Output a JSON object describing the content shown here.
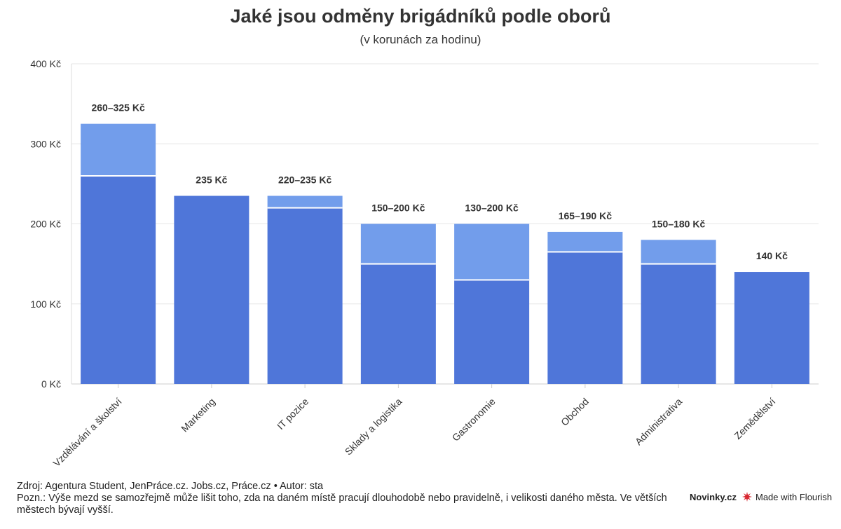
{
  "header": {
    "title": "Jaké jsou odměny brigádníků podle oborů",
    "subtitle": "(v korunách za hodinu)"
  },
  "chart_data": {
    "type": "bar",
    "stacked_range": true,
    "categories": [
      "Vzdělávání a školství",
      "Marketing",
      "IT pozice",
      "Sklady a logistika",
      "Gastronomie",
      "Obchod",
      "Administrativa",
      "Zemědělství"
    ],
    "min_values": [
      260,
      235,
      220,
      150,
      130,
      165,
      150,
      140
    ],
    "max_values": [
      325,
      235,
      235,
      200,
      200,
      190,
      180,
      140
    ],
    "data_labels": [
      "260–325 Kč",
      "235 Kč",
      "220–235 Kč",
      "150–200 Kč",
      "130–200 Kč",
      "165–190 Kč",
      "150–180 Kč",
      "140 Kč"
    ],
    "y_ticks": [
      0,
      100,
      200,
      300,
      400
    ],
    "y_tick_labels": [
      "0 Kč",
      "100 Kč",
      "200 Kč",
      "300 Kč",
      "400 Kč"
    ],
    "ylim": [
      0,
      400
    ],
    "grid": true,
    "colors": {
      "min": "#4f76d9",
      "range": "#729deb"
    }
  },
  "footer": {
    "source": "Zdroj: Agentura Student, JenPráce.cz. Jobs.cz, Práce.cz • Autor: sta",
    "note": "Pozn.: Výše mezd se samozřejmě může lišit toho, zda na daném místě pracují dlouhodobě nebo pravidelně, i velikosti daného města. Ve větších městech bývají vyšší."
  },
  "branding": {
    "publisher": "Novinky.cz",
    "made_with": "Made with Flourish",
    "flourish_icon": "flourish-logo-icon"
  }
}
